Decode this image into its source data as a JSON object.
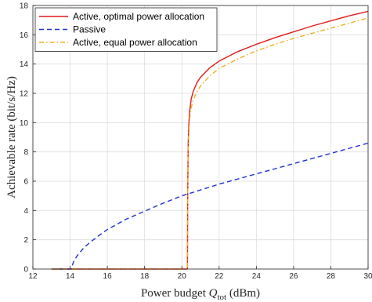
{
  "chart_data": {
    "type": "line",
    "title": "",
    "xlabel": {
      "prefix": "Power budget ",
      "symbol": "Q",
      "subscript": "tot",
      "suffix": " (dBm)"
    },
    "ylabel": "Achievable rate (bit/s/Hz)",
    "xlim": [
      12,
      30
    ],
    "ylim": [
      0,
      18
    ],
    "xticks": [
      12,
      14,
      16,
      18,
      20,
      22,
      24,
      26,
      28,
      30
    ],
    "yticks": [
      0,
      2,
      4,
      6,
      8,
      10,
      12,
      14,
      16,
      18
    ],
    "grid": true,
    "legend_position": "top-left",
    "series": [
      {
        "name": "Active, optimal power allocation",
        "color": "#e31a1c",
        "dash": "solid",
        "x": [
          13,
          20.28,
          20.3,
          20.31,
          20.32,
          20.34,
          20.37,
          20.42,
          20.5,
          20.6,
          20.8,
          21,
          21.5,
          22,
          23,
          24,
          25,
          26,
          27,
          28,
          29,
          30
        ],
        "y": [
          0,
          0,
          0.05,
          3.5,
          6.0,
          8.5,
          9.8,
          10.8,
          11.6,
          12.1,
          12.7,
          13.1,
          13.75,
          14.2,
          14.85,
          15.35,
          15.8,
          16.2,
          16.6,
          16.95,
          17.3,
          17.6
        ]
      },
      {
        "name": "Passive",
        "color": "#1f2fd6",
        "dash": "dashed",
        "x": [
          13,
          14.05,
          14.1,
          14.2,
          14.4,
          14.7,
          15,
          15.5,
          16,
          17,
          18,
          19,
          20,
          21,
          22,
          23,
          24,
          25,
          26,
          27,
          28,
          29,
          30
        ],
        "y": [
          0,
          0,
          0.2,
          0.55,
          0.95,
          1.4,
          1.75,
          2.25,
          2.7,
          3.4,
          3.95,
          4.5,
          5.0,
          5.4,
          5.8,
          6.15,
          6.5,
          6.85,
          7.2,
          7.55,
          7.9,
          8.25,
          8.6
        ]
      },
      {
        "name": "Active, equal power allocation",
        "color": "#edb120",
        "dash": "dashdot",
        "x": [
          13,
          20.28,
          20.3,
          20.31,
          20.32,
          20.34,
          20.37,
          20.42,
          20.5,
          20.6,
          20.8,
          21,
          21.5,
          22,
          23,
          24,
          25,
          26,
          27,
          28,
          29,
          30
        ],
        "y": [
          0,
          0,
          0.05,
          3.0,
          5.5,
          8.0,
          9.3,
          10.3,
          11.0,
          11.5,
          12.1,
          12.5,
          13.2,
          13.7,
          14.35,
          14.9,
          15.35,
          15.75,
          16.1,
          16.45,
          16.8,
          17.15
        ]
      }
    ]
  }
}
